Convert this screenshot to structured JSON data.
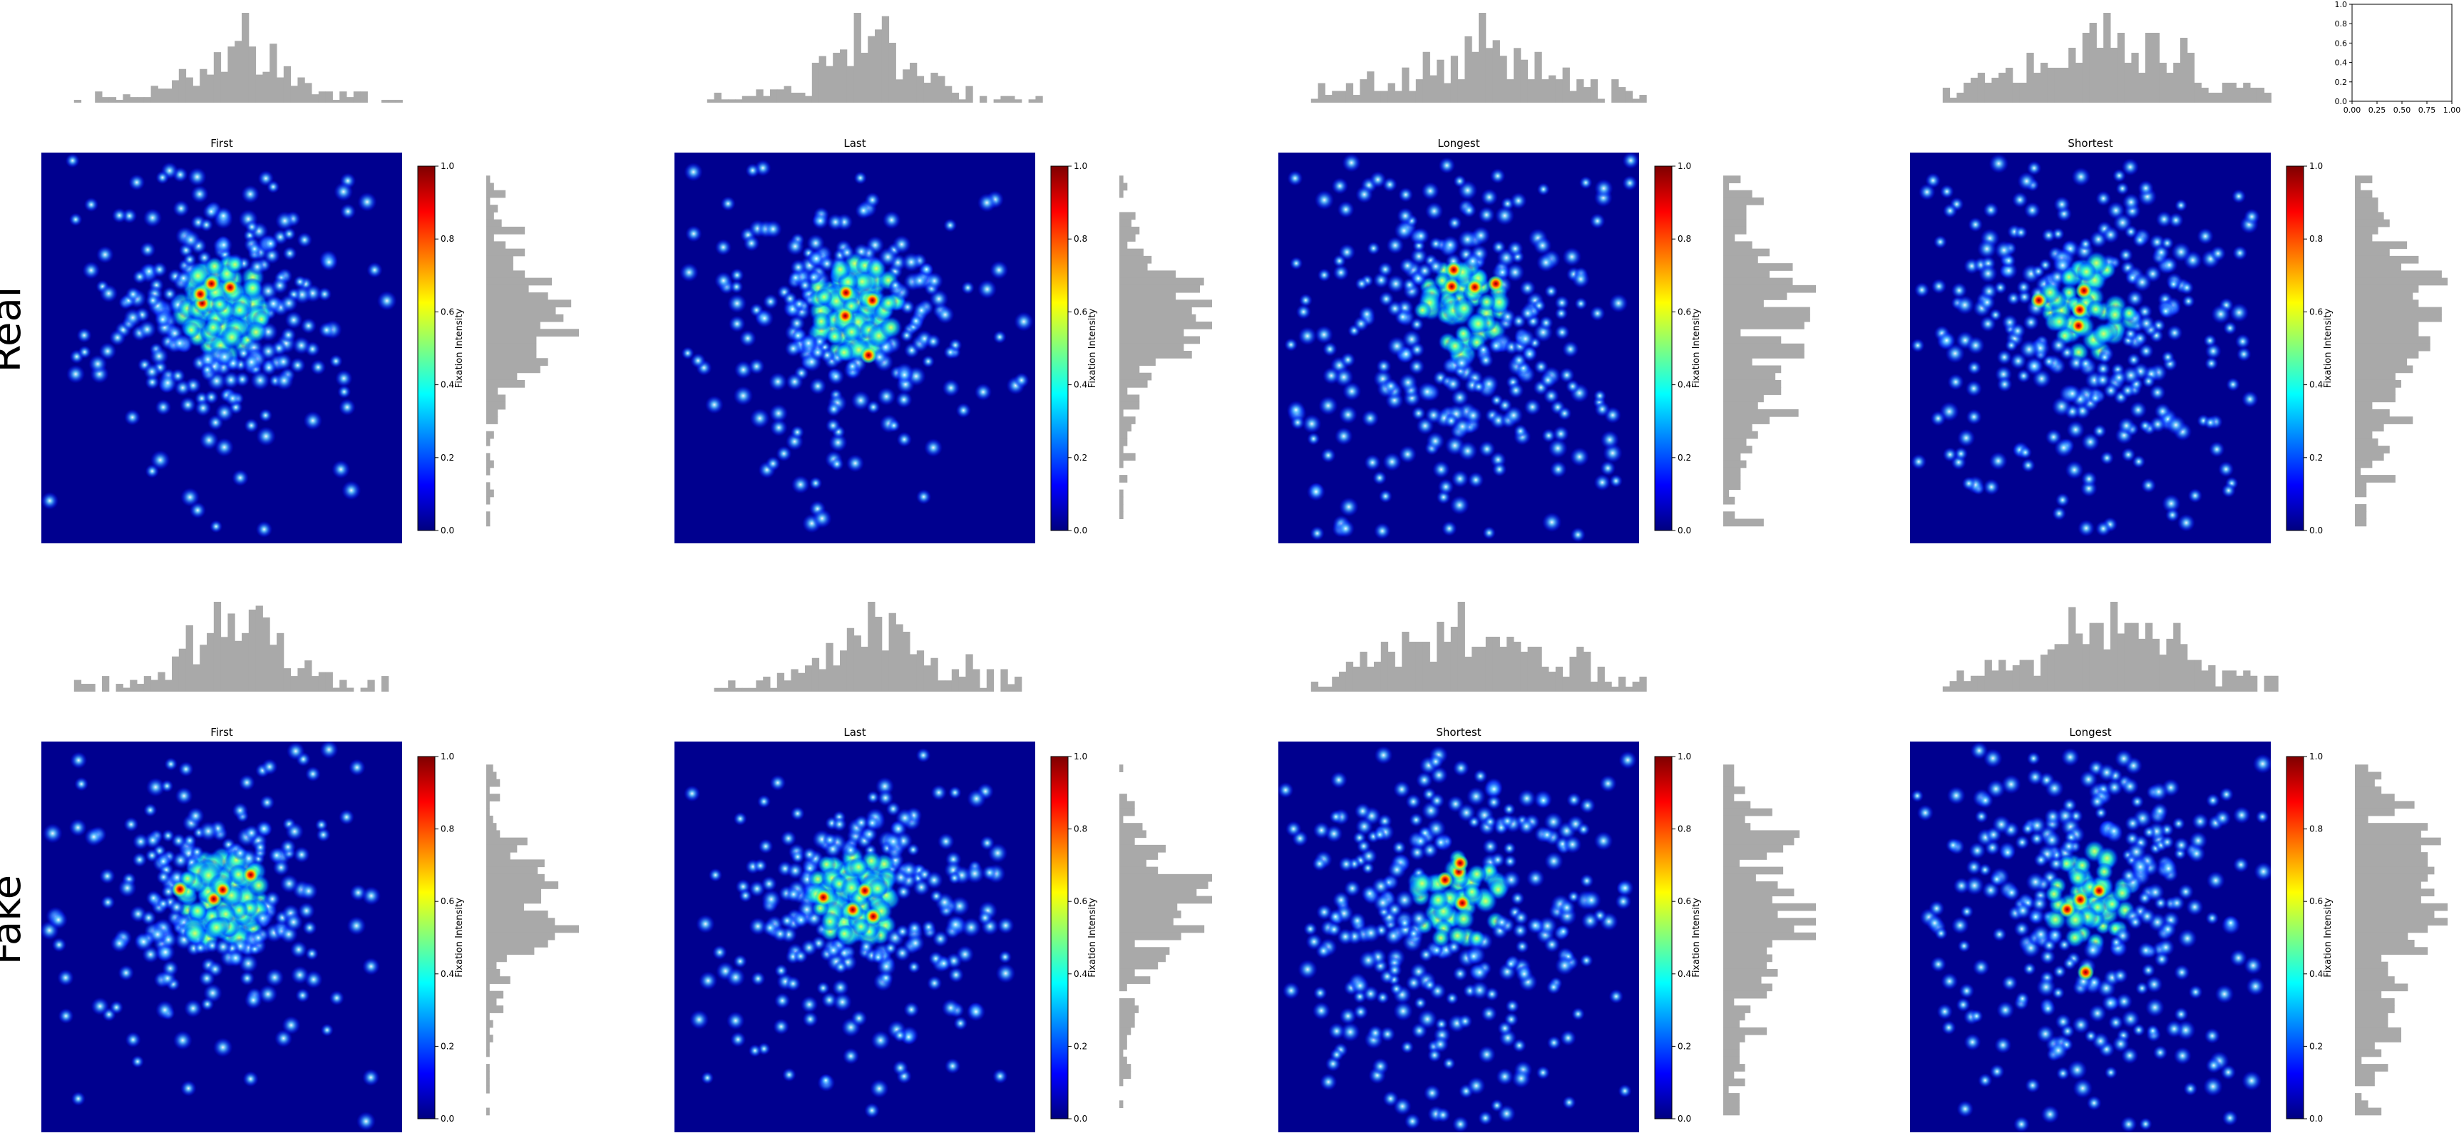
{
  "figure": {
    "row_labels": [
      "Real",
      "Fake"
    ]
  },
  "colorbar": {
    "label": "Fixation Intensity",
    "ticks": [
      "0.0",
      "0.2",
      "0.4",
      "0.6",
      "0.8",
      "1.0"
    ],
    "colormap": [
      "#00007f",
      "#0000ff",
      "#007fff",
      "#00ffff",
      "#7fff7f",
      "#ffff00",
      "#ff7f00",
      "#ff0000",
      "#7f0000"
    ]
  },
  "empty_axes": {
    "x_ticks": [
      "0.00",
      "0.25",
      "0.50",
      "0.75",
      "1.00"
    ],
    "y_ticks": [
      "0.0",
      "0.2",
      "0.4",
      "0.6",
      "0.8",
      "1.0"
    ],
    "xlim": [
      0,
      1
    ],
    "ylim": [
      0,
      1
    ]
  },
  "chart_data": [
    {
      "type": "heatmap",
      "row": "Real",
      "title": "First",
      "spread": 0.22,
      "central_weight": 0.55,
      "histogram_color": "#a9a9a9",
      "xlim": [
        0,
        1
      ],
      "ylim": [
        0,
        1
      ],
      "color_range": [
        0.0,
        1.0
      ]
    },
    {
      "type": "heatmap",
      "row": "Real",
      "title": "Last",
      "spread": 0.22,
      "central_weight": 0.55,
      "histogram_color": "#a9a9a9",
      "xlim": [
        0,
        1
      ],
      "ylim": [
        0,
        1
      ],
      "color_range": [
        0.0,
        1.0
      ]
    },
    {
      "type": "heatmap",
      "row": "Real",
      "title": "Longest",
      "spread": 0.3,
      "central_weight": 0.25,
      "histogram_color": "#a9a9a9",
      "xlim": [
        0,
        1
      ],
      "ylim": [
        0,
        1
      ],
      "color_range": [
        0.0,
        1.0
      ]
    },
    {
      "type": "heatmap",
      "row": "Real",
      "title": "Shortest",
      "spread": 0.3,
      "central_weight": 0.3,
      "histogram_color": "#a9a9a9",
      "xlim": [
        0,
        1
      ],
      "ylim": [
        0,
        1
      ],
      "color_range": [
        0.0,
        1.0
      ]
    },
    {
      "type": "heatmap",
      "row": "Fake",
      "title": "First",
      "spread": 0.22,
      "central_weight": 0.6,
      "histogram_color": "#a9a9a9",
      "xlim": [
        0,
        1
      ],
      "ylim": [
        0,
        1
      ],
      "color_range": [
        0.0,
        1.0
      ]
    },
    {
      "type": "heatmap",
      "row": "Fake",
      "title": "Last",
      "spread": 0.22,
      "central_weight": 0.55,
      "histogram_color": "#a9a9a9",
      "xlim": [
        0,
        1
      ],
      "ylim": [
        0,
        1
      ],
      "color_range": [
        0.0,
        1.0
      ]
    },
    {
      "type": "heatmap",
      "row": "Fake",
      "title": "Shortest",
      "spread": 0.3,
      "central_weight": 0.25,
      "histogram_color": "#a9a9a9",
      "xlim": [
        0,
        1
      ],
      "ylim": [
        0,
        1
      ],
      "color_range": [
        0.0,
        1.0
      ]
    },
    {
      "type": "heatmap",
      "row": "Fake",
      "title": "Longest",
      "spread": 0.3,
      "central_weight": 0.3,
      "histogram_color": "#a9a9a9",
      "xlim": [
        0,
        1
      ],
      "ylim": [
        0,
        1
      ],
      "color_range": [
        0.0,
        1.0
      ]
    }
  ]
}
